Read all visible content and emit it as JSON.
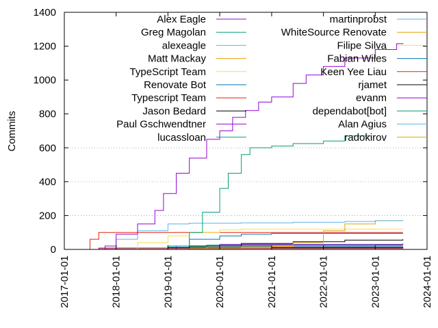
{
  "chart_data": {
    "type": "line",
    "ylabel": "Commits",
    "ylim": [
      0,
      1400
    ],
    "yticks": [
      0,
      200,
      400,
      600,
      800,
      1000,
      1200,
      1400
    ],
    "xlim": [
      "2017-01-01",
      "2024-01-01"
    ],
    "xticks": [
      "2017-01-01",
      "2018-01-01",
      "2019-01-01",
      "2020-01-01",
      "2021-01-01",
      "2022-01-01",
      "2023-01-01",
      "2024-01-01"
    ],
    "grid": "horizontal dotted at 200, 400, 600",
    "legend_placement": "top, two columns",
    "series": [
      {
        "name": "Alex Eagle",
        "color": "#9400d3",
        "points": [
          [
            "2017-09-15",
            0
          ],
          [
            "2017-10-15",
            20
          ],
          [
            "2018-01-01",
            90
          ],
          [
            "2018-06-01",
            150
          ],
          [
            "2018-10-01",
            230
          ],
          [
            "2018-12-01",
            330
          ],
          [
            "2019-03-01",
            450
          ],
          [
            "2019-06-01",
            540
          ],
          [
            "2019-10-01",
            650
          ],
          [
            "2020-01-01",
            700
          ],
          [
            "2020-04-01",
            780
          ],
          [
            "2020-07-01",
            820
          ],
          [
            "2020-10-01",
            870
          ],
          [
            "2021-01-01",
            900
          ],
          [
            "2021-06-01",
            980
          ],
          [
            "2021-09-01",
            1030
          ],
          [
            "2022-01-01",
            1080
          ],
          [
            "2022-06-01",
            1130
          ],
          [
            "2023-01-01",
            1180
          ],
          [
            "2023-06-01",
            1215
          ],
          [
            "2023-07-15",
            1218
          ]
        ]
      },
      {
        "name": "Greg Magolan",
        "color": "#009e73",
        "points": [
          [
            "2018-09-01",
            0
          ],
          [
            "2019-01-01",
            20
          ],
          [
            "2019-06-01",
            100
          ],
          [
            "2019-09-01",
            220
          ],
          [
            "2020-01-01",
            360
          ],
          [
            "2020-03-01",
            450
          ],
          [
            "2020-06-01",
            560
          ],
          [
            "2020-08-01",
            600
          ],
          [
            "2021-01-01",
            610
          ],
          [
            "2021-06-01",
            625
          ],
          [
            "2022-01-01",
            640
          ],
          [
            "2022-06-01",
            670
          ],
          [
            "2022-12-01",
            672
          ]
        ]
      },
      {
        "name": "alexeagle",
        "color": "#56b4e9",
        "points": [
          [
            "2017-10-01",
            0
          ],
          [
            "2018-01-01",
            60
          ],
          [
            "2018-06-01",
            110
          ],
          [
            "2019-01-01",
            150
          ],
          [
            "2019-06-01",
            155
          ],
          [
            "2020-06-01",
            157
          ],
          [
            "2021-06-01",
            160
          ],
          [
            "2022-06-01",
            165
          ],
          [
            "2023-01-01",
            170
          ],
          [
            "2023-07-15",
            172
          ]
        ]
      },
      {
        "name": "Matt Mackay",
        "color": "#e69f00",
        "points": [
          [
            "2018-06-01",
            0
          ],
          [
            "2019-06-01",
            5
          ],
          [
            "2020-06-01",
            15
          ],
          [
            "2021-06-01",
            40
          ],
          [
            "2022-01-01",
            110
          ],
          [
            "2022-06-01",
            150
          ],
          [
            "2023-01-01",
            170
          ],
          [
            "2023-07-15",
            172
          ]
        ]
      },
      {
        "name": "TypeScript Team",
        "color": "#f0e442",
        "points": [
          [
            "2017-12-01",
            0
          ],
          [
            "2018-06-01",
            40
          ],
          [
            "2019-01-01",
            80
          ],
          [
            "2019-06-01",
            100
          ],
          [
            "2020-01-01",
            115
          ],
          [
            "2020-06-01",
            120
          ],
          [
            "2021-06-01",
            120
          ],
          [
            "2023-07-15",
            120
          ]
        ]
      },
      {
        "name": "Renovate Bot",
        "color": "#0072b2",
        "points": [
          [
            "2018-04-01",
            0
          ],
          [
            "2019-01-01",
            20
          ],
          [
            "2019-06-01",
            60
          ],
          [
            "2020-01-01",
            80
          ],
          [
            "2020-06-01",
            90
          ],
          [
            "2021-01-01",
            95
          ],
          [
            "2021-06-01",
            95
          ],
          [
            "2022-01-01",
            95
          ],
          [
            "2023-07-15",
            95
          ]
        ]
      },
      {
        "name": "Typescript Team",
        "color": "#e51e10",
        "points": [
          [
            "2017-05-01",
            0
          ],
          [
            "2017-07-01",
            60
          ],
          [
            "2017-09-01",
            100
          ],
          [
            "2018-06-01",
            100
          ],
          [
            "2023-07-15",
            100
          ]
        ]
      },
      {
        "name": "Jason Bedard",
        "color": "#000000",
        "points": [
          [
            "2018-06-01",
            0
          ],
          [
            "2019-06-01",
            20
          ],
          [
            "2020-06-01",
            35
          ],
          [
            "2021-06-01",
            45
          ],
          [
            "2022-06-01",
            55
          ],
          [
            "2023-07-15",
            60
          ]
        ]
      },
      {
        "name": "Paul Gschwendtner",
        "color": "#9400d3",
        "points": [
          [
            "2018-10-01",
            0
          ],
          [
            "2019-03-01",
            20
          ],
          [
            "2020-01-01",
            30
          ],
          [
            "2023-07-15",
            32
          ]
        ]
      },
      {
        "name": "lucassloan",
        "color": "#009e73",
        "points": [
          [
            "2019-01-01",
            0
          ],
          [
            "2019-06-01",
            15
          ],
          [
            "2019-10-01",
            25
          ],
          [
            "2023-07-15",
            25
          ]
        ]
      },
      {
        "name": "martinprobst",
        "color": "#56b4e9",
        "points": [
          [
            "2017-07-01",
            0
          ],
          [
            "2018-01-01",
            10
          ],
          [
            "2019-01-01",
            15
          ],
          [
            "2023-07-15",
            15
          ]
        ]
      },
      {
        "name": "WhiteSource Renovate",
        "color": "#e69f00",
        "points": [
          [
            "2020-01-01",
            0
          ],
          [
            "2020-06-01",
            10
          ],
          [
            "2021-01-01",
            20
          ],
          [
            "2021-06-01",
            22
          ],
          [
            "2023-07-15",
            22
          ]
        ]
      },
      {
        "name": "Filipe Silva",
        "color": "#f0e442",
        "points": [
          [
            "2019-06-01",
            0
          ],
          [
            "2019-10-01",
            15
          ],
          [
            "2020-06-01",
            25
          ],
          [
            "2023-07-15",
            28
          ]
        ]
      },
      {
        "name": "Fabian Wiles",
        "color": "#0072b2",
        "points": [
          [
            "2018-06-01",
            0
          ],
          [
            "2019-06-01",
            10
          ],
          [
            "2020-06-01",
            20
          ],
          [
            "2023-07-15",
            20
          ]
        ]
      },
      {
        "name": "Keen Yee Liau",
        "color": "#e51e10",
        "points": [
          [
            "2018-08-01",
            0
          ],
          [
            "2019-06-01",
            10
          ],
          [
            "2020-06-01",
            15
          ],
          [
            "2023-07-15",
            16
          ]
        ]
      },
      {
        "name": "rjamet",
        "color": "#000000",
        "points": [
          [
            "2017-09-01",
            0
          ],
          [
            "2018-01-01",
            10
          ],
          [
            "2023-07-15",
            12
          ]
        ]
      },
      {
        "name": "evanm",
        "color": "#9400d3",
        "points": [
          [
            "2017-05-01",
            0
          ],
          [
            "2017-09-01",
            8
          ],
          [
            "2023-07-15",
            10
          ]
        ]
      },
      {
        "name": "dependabot[bot]",
        "color": "#009e73",
        "points": [
          [
            "2021-01-01",
            0
          ],
          [
            "2022-01-01",
            15
          ],
          [
            "2023-01-01",
            30
          ],
          [
            "2023-07-15",
            35
          ]
        ]
      },
      {
        "name": "Alan Agius",
        "color": "#56b4e9",
        "points": [
          [
            "2018-01-01",
            0
          ],
          [
            "2019-01-01",
            10
          ],
          [
            "2023-07-15",
            12
          ]
        ]
      },
      {
        "name": "radokirov",
        "color": "#e69f00",
        "points": [
          [
            "2017-05-01",
            0
          ],
          [
            "2017-09-01",
            5
          ],
          [
            "2023-07-15",
            8
          ]
        ]
      }
    ]
  }
}
